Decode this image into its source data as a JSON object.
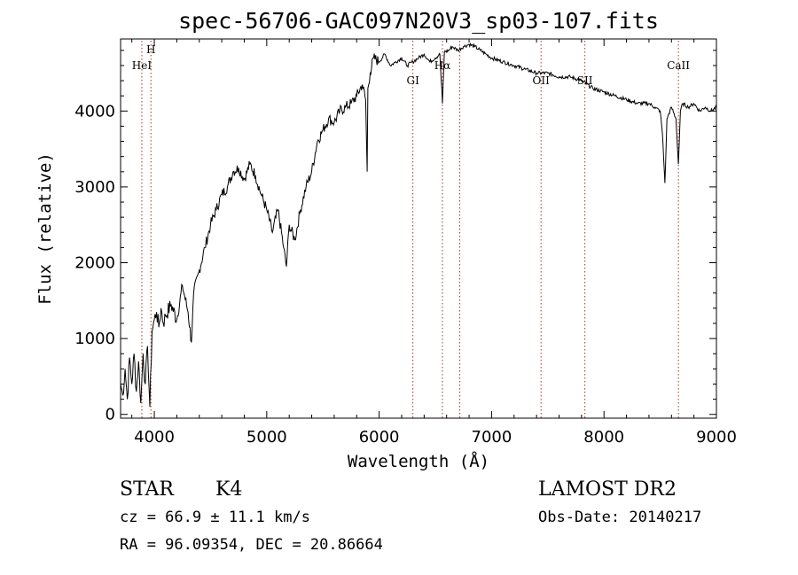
{
  "chart_data": {
    "type": "line",
    "title": "spec-56706-GAC097N20V3_sp03-107.fits",
    "xlabel": "Wavelength (Å)",
    "ylabel": "Flux (relative)",
    "xlim": [
      3700,
      9000
    ],
    "ylim": [
      -50,
      4950
    ],
    "x_ticks": [
      4000,
      5000,
      6000,
      7000,
      8000,
      9000
    ],
    "y_ticks": [
      0,
      1000,
      2000,
      3000,
      4000
    ],
    "grid": false,
    "line_color": "#000000",
    "marker_color": "#b03030",
    "series": [
      {
        "x": [
          3700,
          3720,
          3740,
          3760,
          3780,
          3800,
          3820,
          3840,
          3860,
          3880,
          3900,
          3920,
          3940,
          3960,
          3980,
          4000,
          4020,
          4040,
          4060,
          4080,
          4100,
          4150,
          4200,
          4250,
          4300,
          4330,
          4350,
          4400,
          4450,
          4500,
          4550,
          4600,
          4650,
          4700,
          4750,
          4800,
          4850,
          4900,
          4950,
          5000,
          5050,
          5100,
          5150,
          5175,
          5200,
          5250,
          5300,
          5350,
          5400,
          5450,
          5500,
          5550,
          5600,
          5650,
          5700,
          5750,
          5800,
          5850,
          5880,
          5893,
          5900,
          5920,
          5950,
          6000,
          6050,
          6100,
          6150,
          6200,
          6250,
          6300,
          6350,
          6400,
          6450,
          6500,
          6540,
          6563,
          6580,
          6620,
          6650,
          6700,
          6750,
          6800,
          6850,
          6900,
          6950,
          7000,
          7100,
          7200,
          7300,
          7400,
          7500,
          7600,
          7700,
          7800,
          7900,
          8000,
          8100,
          8200,
          8300,
          8400,
          8450,
          8500,
          8520,
          8542,
          8560,
          8600,
          8640,
          8662,
          8680,
          8700,
          8750,
          8800,
          8850,
          8900,
          8950,
          9000
        ],
        "y": [
          400,
          250,
          600,
          200,
          750,
          400,
          800,
          300,
          700,
          150,
          800,
          400,
          900,
          100,
          1100,
          1250,
          1350,
          1150,
          1400,
          1200,
          1300,
          1450,
          1250,
          1700,
          1350,
          950,
          1600,
          1900,
          2200,
          2500,
          2700,
          2900,
          3000,
          3200,
          3250,
          3100,
          3300,
          3150,
          2900,
          2700,
          2400,
          2700,
          2200,
          1950,
          2500,
          2300,
          2700,
          3000,
          3200,
          3600,
          3750,
          3900,
          3850,
          4000,
          4050,
          4100,
          4200,
          4350,
          4150,
          3200,
          4300,
          4500,
          4700,
          4650,
          4750,
          4600,
          4650,
          4700,
          4600,
          4650,
          4700,
          4750,
          4650,
          4700,
          4750,
          4100,
          4780,
          4800,
          4850,
          4800,
          4850,
          4880,
          4850,
          4800,
          4750,
          4700,
          4650,
          4600,
          4550,
          4500,
          4500,
          4450,
          4450,
          4400,
          4300,
          4250,
          4200,
          4150,
          4100,
          4100,
          4050,
          4000,
          3700,
          3050,
          3900,
          4050,
          3900,
          3300,
          4000,
          4100,
          4050,
          4100,
          4000,
          4050,
          4000,
          4050
        ]
      }
    ],
    "annotations": [
      {
        "text": "H",
        "x": 3970
      },
      {
        "text": "HeI",
        "x": 3889
      },
      {
        "text": "GI",
        "x": 6300
      },
      {
        "text": "Hα",
        "x": 6563
      },
      {
        "text": "",
        "x": 6717
      },
      {
        "text": "OII",
        "x": 7440
      },
      {
        "text": "SII",
        "x": 7830
      },
      {
        "text": "CaII",
        "x": 8662
      }
    ]
  },
  "info": {
    "star_type": "STAR",
    "subclass": "K4",
    "cz": "cz = 66.9 ± 11.1 km/s",
    "radec": "RA =  96.09354, DEC =  20.86664",
    "survey": "LAMOST DR2",
    "obs_date": "Obs-Date: 20140217"
  }
}
